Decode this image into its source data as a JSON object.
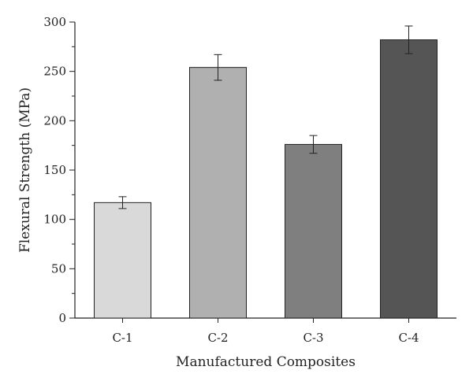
{
  "chart_data": {
    "type": "bar",
    "xlabel": "Manufactured Composites",
    "ylabel": "Flexural Strength (MPa)",
    "ylim": [
      0,
      300
    ],
    "yticks": [
      0,
      50,
      100,
      150,
      200,
      250,
      300
    ],
    "categories": [
      "C-1",
      "C-2",
      "C-3",
      "C-4"
    ],
    "values": [
      117,
      254,
      176,
      282
    ],
    "errors": [
      6,
      13,
      9,
      14
    ],
    "bar_colors": [
      "#d9d9d9",
      "#b0b0b0",
      "#7f7f7f",
      "#555555"
    ],
    "grid": false,
    "legend": "none"
  }
}
